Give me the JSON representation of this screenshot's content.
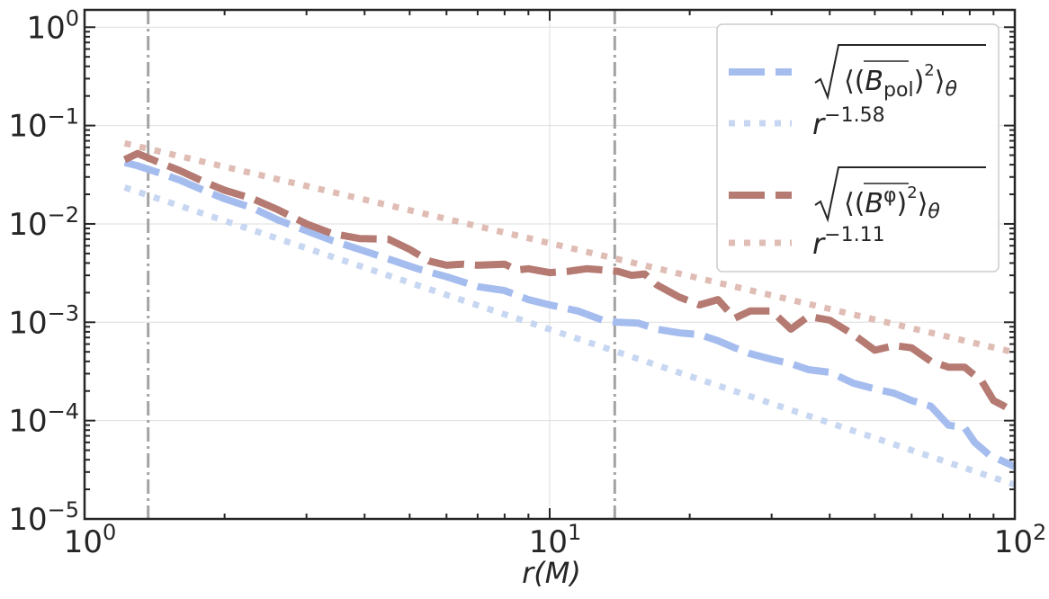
{
  "chart_data": {
    "type": "line",
    "xscale": "log",
    "yscale": "log",
    "xlim": [
      1,
      100
    ],
    "ylim": [
      1e-05,
      1.5
    ],
    "xlabel": "r(M)",
    "x_ticks": [
      {
        "value": 1,
        "base": "10",
        "exp": "0"
      },
      {
        "value": 10,
        "base": "10",
        "exp": "1"
      },
      {
        "value": 100,
        "base": "10",
        "exp": "2"
      }
    ],
    "y_ticks": [
      {
        "value": 1,
        "base": "10",
        "exp": "0"
      },
      {
        "value": 0.1,
        "base": "10",
        "exp": "−1"
      },
      {
        "value": 0.01,
        "base": "10",
        "exp": "−2"
      },
      {
        "value": 0.001,
        "base": "10",
        "exp": "−3"
      },
      {
        "value": 0.0001,
        "base": "10",
        "exp": "−4"
      },
      {
        "value": 1e-05,
        "base": "10",
        "exp": "−5"
      }
    ],
    "vertical_lines": [
      1.37,
      13.8
    ],
    "grid": true,
    "legend_position": "top-right",
    "series": [
      {
        "name": "Bpol",
        "legend_label": "√⟨(B̄pol)²⟩θ",
        "color": "#a5bdee",
        "style": "dashed",
        "x": [
          1.22,
          1.3,
          1.45,
          1.6,
          1.8,
          2.0,
          2.3,
          2.6,
          3.0,
          3.4,
          3.9,
          4.5,
          5.2,
          6.0,
          7.0,
          8.0,
          9.0,
          10.0,
          11.5,
          13.0,
          14.0,
          15.5,
          17.0,
          19.0,
          21.0,
          23.0,
          25.0,
          27.0,
          30.0,
          33.0,
          36.0,
          40.0,
          45.0,
          50.0,
          55.0,
          60.0,
          66.0,
          72.0,
          78.0,
          82.0,
          88.0,
          95.0,
          100.0
        ],
        "y": [
          0.042,
          0.039,
          0.033,
          0.028,
          0.022,
          0.018,
          0.0145,
          0.011,
          0.0085,
          0.0068,
          0.0055,
          0.0044,
          0.0035,
          0.0029,
          0.0023,
          0.0021,
          0.0017,
          0.0015,
          0.0013,
          0.00105,
          0.001,
          0.00098,
          0.00085,
          0.00078,
          0.00075,
          0.00065,
          0.00055,
          0.00048,
          0.00042,
          0.00038,
          0.00033,
          0.00031,
          0.00024,
          0.00021,
          0.00019,
          0.00016,
          0.00014,
          9e-05,
          8.5e-05,
          6e-05,
          4.5e-05,
          3.8e-05,
          3.4e-05
        ]
      },
      {
        "name": "Bpol fit",
        "legend_label": "r",
        "legend_exp": "−1.58",
        "color": "#c7d6f1",
        "style": "dotted",
        "x": [
          1.22,
          100
        ],
        "y": [
          0.0235,
          2.23e-05
        ]
      },
      {
        "name": "Bphi",
        "legend_label": "√⟨(B̄φ)²⟩θ",
        "color": "#b57a72",
        "style": "dashed",
        "x": [
          1.22,
          1.3,
          1.45,
          1.6,
          1.8,
          2.0,
          2.3,
          2.6,
          3.0,
          3.4,
          3.9,
          4.5,
          5.0,
          5.5,
          6.0,
          6.5,
          7.0,
          8.0,
          8.5,
          9.0,
          10.0,
          11.0,
          12.0,
          13.0,
          14.0,
          15.0,
          16.0,
          17.0,
          19.0,
          21.0,
          23.0,
          25.0,
          27.0,
          30.0,
          33.0,
          36.0,
          40.0,
          45.0,
          50.0,
          55.0,
          60.0,
          66.0,
          72.0,
          78.0,
          85.0,
          90.0,
          95.0,
          100.0
        ],
        "y": [
          0.045,
          0.052,
          0.042,
          0.035,
          0.027,
          0.022,
          0.018,
          0.014,
          0.01,
          0.008,
          0.0071,
          0.007,
          0.0055,
          0.0042,
          0.0038,
          0.0039,
          0.0038,
          0.0039,
          0.0034,
          0.0035,
          0.0032,
          0.0033,
          0.0035,
          0.0034,
          0.0033,
          0.003,
          0.0031,
          0.0024,
          0.0018,
          0.0015,
          0.0017,
          0.0011,
          0.0013,
          0.0013,
          0.00085,
          0.00115,
          0.00105,
          0.00075,
          0.00052,
          0.00058,
          0.00055,
          0.0004,
          0.00035,
          0.00035,
          0.00025,
          0.00016,
          0.00014,
          0.00012
        ]
      },
      {
        "name": "Bphi fit",
        "legend_label": "r",
        "legend_exp": "−1.11",
        "color": "#dfbcb4",
        "style": "dotted",
        "x": [
          1.22,
          100
        ],
        "y": [
          0.066,
          0.000493
        ]
      }
    ]
  }
}
